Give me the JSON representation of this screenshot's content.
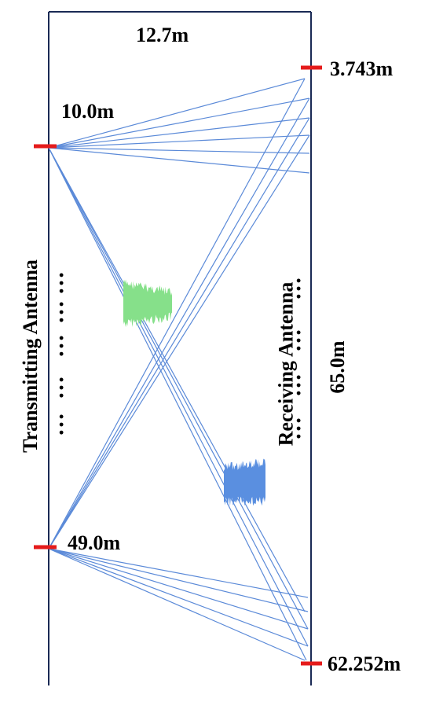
{
  "diagram": {
    "width_label": "12.7m",
    "height_label": "65.0m",
    "transmitter": {
      "title": "Transmitting Antenna",
      "top_label": "10.0m",
      "bottom_label": "49.0m"
    },
    "receiver": {
      "title": "Receiving Antenna",
      "top_label": "3.743m",
      "bottom_label": "62.252m"
    },
    "colors": {
      "boundary": "#1a2a55",
      "ray": "#5b8ad8",
      "antenna_marker": "#e51b1b",
      "blob_green": "#86e08a",
      "blob_blue": "#5a8fe0"
    },
    "dots": "…"
  }
}
